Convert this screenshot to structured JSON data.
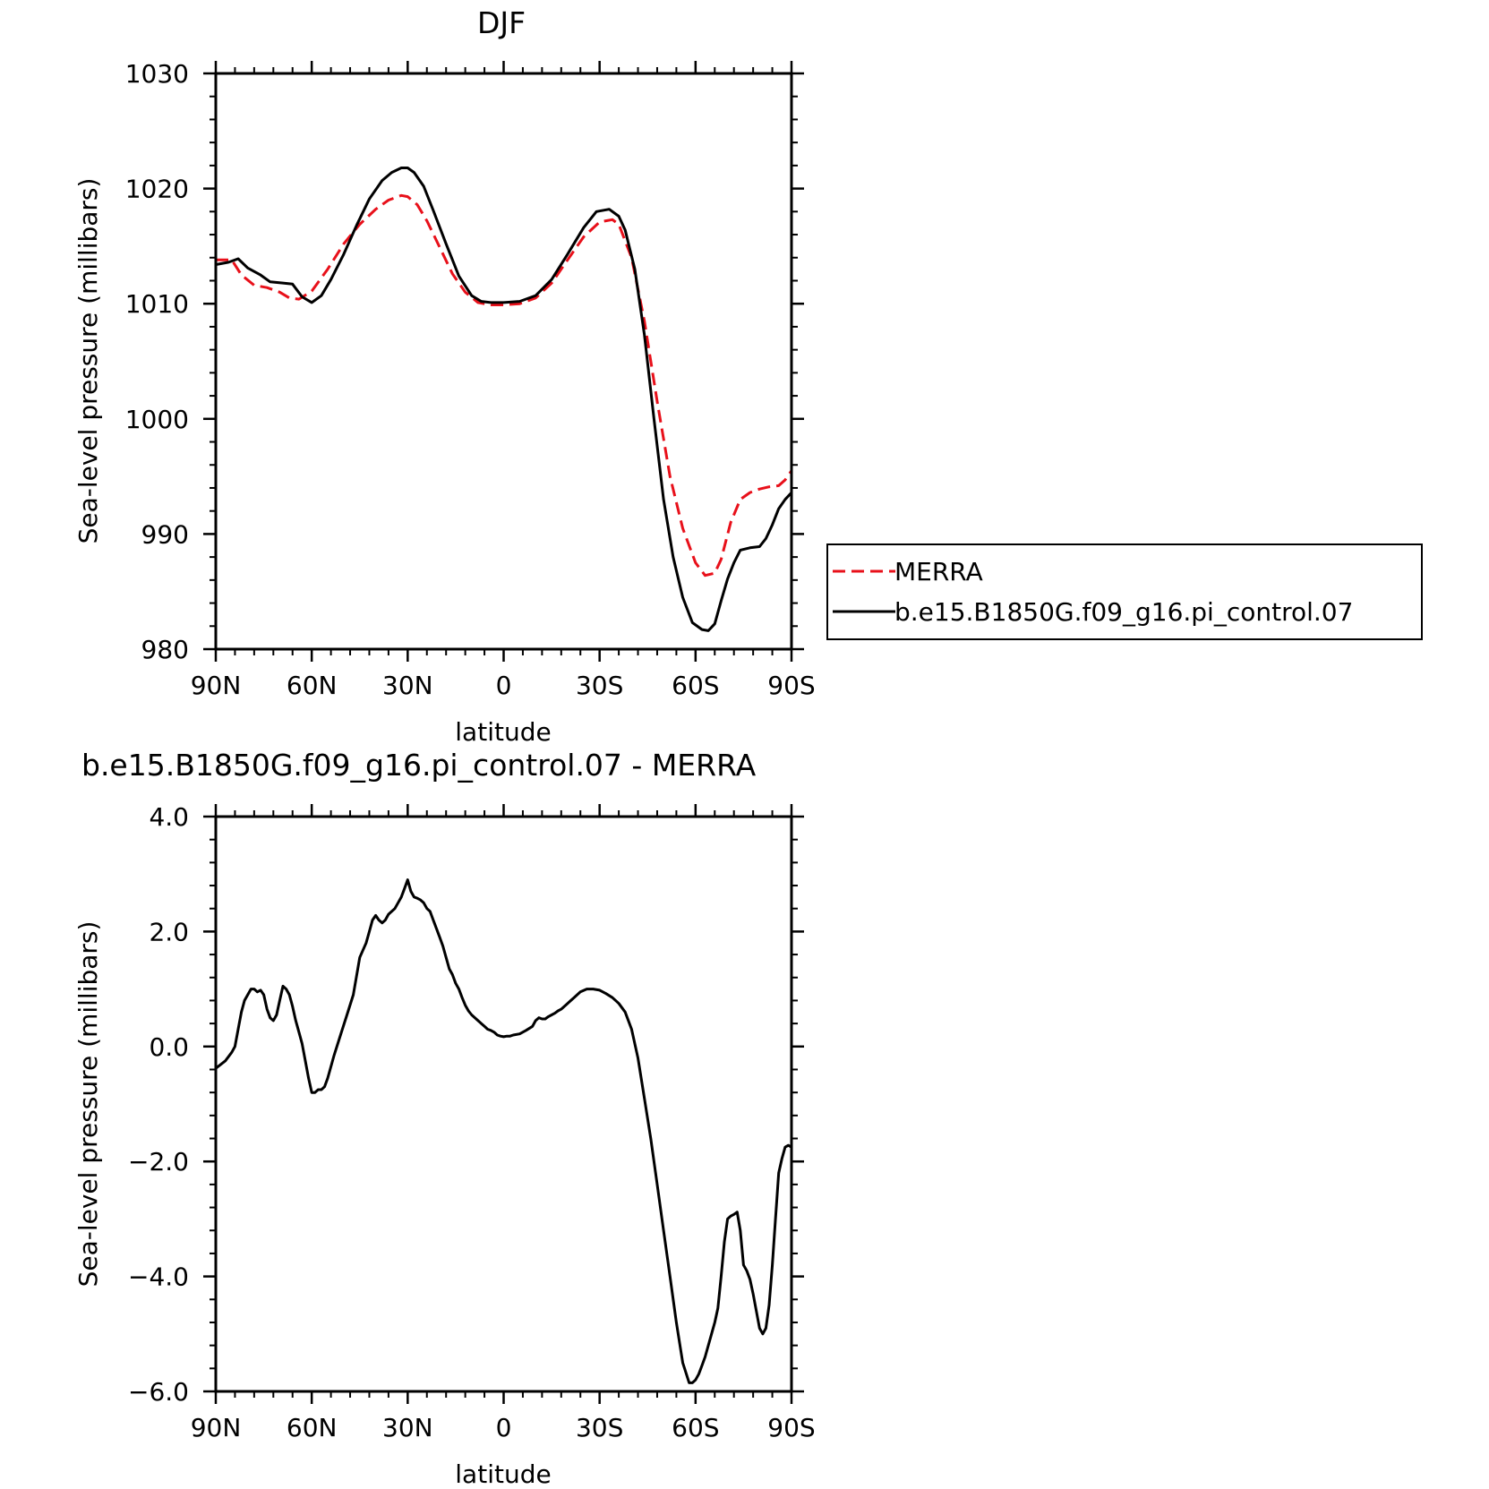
{
  "chart_data": [
    {
      "type": "line",
      "title": "DJF",
      "xlabel": "latitude",
      "ylabel": "Sea-level pressure (millibars)",
      "x_tick_labels": [
        "90N",
        "60N",
        "30N",
        "0",
        "30S",
        "60S",
        "90S"
      ],
      "x_ticks": [
        90,
        60,
        30,
        0,
        -30,
        -60,
        -90
      ],
      "xlim": [
        90,
        -90
      ],
      "y_tick_labels": [
        "980",
        "990",
        "1000",
        "1010",
        "1020",
        "1030"
      ],
      "y_ticks": [
        980,
        990,
        1000,
        1010,
        1020,
        1030
      ],
      "ylim": [
        980,
        1030
      ],
      "legend": "right",
      "series": [
        {
          "name": "MERRA",
          "color": "#e8101a",
          "dash": "dashed",
          "x": [
            90,
            85,
            82,
            78,
            74,
            70,
            67,
            64,
            60,
            55,
            50,
            45,
            40,
            36,
            32,
            30,
            27,
            24,
            20,
            16,
            12,
            8,
            4,
            0,
            -5,
            -10,
            -15,
            -20,
            -25,
            -30,
            -34,
            -36,
            -40,
            -44,
            -48,
            -52,
            -56,
            -60,
            -63,
            -66,
            -68,
            -71,
            -74,
            -77,
            -80,
            -83,
            -86,
            -88,
            -90
          ],
          "y": [
            1013.8,
            1013.8,
            1012.5,
            1011.6,
            1011.4,
            1011,
            1010.5,
            1010.4,
            1011.1,
            1013,
            1015.2,
            1016.9,
            1018.2,
            1019,
            1019.4,
            1019.3,
            1018.6,
            1017.2,
            1014.9,
            1012.6,
            1011,
            1010.1,
            1009.9,
            1009.9,
            1010,
            1010.5,
            1011.8,
            1013.8,
            1015.8,
            1017.1,
            1017.3,
            1016.9,
            1014,
            1008.5,
            1001.5,
            995,
            990.5,
            987.5,
            986.4,
            986.6,
            987.8,
            991,
            993,
            993.6,
            993.9,
            994.1,
            994.2,
            994.7,
            995.5
          ]
        },
        {
          "name": "b.e15.B1850G.f09_g16.pi_control.07",
          "color": "#000000",
          "dash": "solid",
          "x": [
            90,
            86,
            83,
            80,
            76,
            73,
            69,
            66,
            63,
            60,
            57,
            54,
            50,
            46,
            42,
            38,
            35,
            32,
            30,
            28,
            25,
            22,
            18,
            14,
            10,
            7,
            4,
            0,
            -5,
            -10,
            -15,
            -20,
            -25,
            -29,
            -33,
            -36,
            -38,
            -41,
            -44,
            -47,
            -50,
            -53,
            -56,
            -59,
            -62,
            -64,
            -66,
            -68,
            -70,
            -72,
            -74,
            -77,
            -80,
            -82,
            -84,
            -86,
            -88,
            -90
          ],
          "y": [
            1013.4,
            1013.6,
            1013.9,
            1013.1,
            1012.5,
            1011.9,
            1011.8,
            1011.7,
            1010.6,
            1010.1,
            1010.7,
            1012.1,
            1014.3,
            1016.8,
            1019.1,
            1020.7,
            1021.4,
            1021.8,
            1021.8,
            1021.4,
            1020.2,
            1018.1,
            1015.2,
            1012.4,
            1010.7,
            1010.2,
            1010.1,
            1010.1,
            1010.2,
            1010.7,
            1012.1,
            1014.3,
            1016.6,
            1018,
            1018.2,
            1017.6,
            1016.4,
            1013,
            1007.3,
            1000,
            993,
            988,
            984.5,
            982.3,
            981.7,
            981.6,
            982.2,
            984.2,
            986.1,
            987.5,
            988.6,
            988.8,
            988.9,
            989.6,
            990.8,
            992.2,
            993.0,
            993.6
          ]
        }
      ]
    },
    {
      "type": "line",
      "title": "b.e15.B1850G.f09_g16.pi_control.07 - MERRA",
      "xlabel": "latitude",
      "ylabel": "Sea-level pressure (millibars)",
      "x_tick_labels": [
        "90N",
        "60N",
        "30N",
        "0",
        "30S",
        "60S",
        "90S"
      ],
      "x_ticks": [
        90,
        60,
        30,
        0,
        -30,
        -60,
        -90
      ],
      "xlim": [
        90,
        -90
      ],
      "y_tick_labels": [
        "−6.0",
        "−4.0",
        "−2.0",
        "0.0",
        "2.0",
        "4.0"
      ],
      "y_ticks": [
        -6,
        -4,
        -2,
        0,
        2,
        4
      ],
      "ylim": [
        -6,
        4
      ],
      "series": [
        {
          "color": "#000000",
          "dash": "solid",
          "x": [
            90,
            87,
            85,
            84,
            83,
            82,
            81,
            80,
            79,
            78,
            77,
            76,
            75,
            74,
            73,
            72,
            71,
            70,
            69,
            68,
            67,
            66,
            65,
            64,
            63,
            62,
            61,
            60,
            59,
            58,
            57,
            56,
            55,
            53,
            51,
            49,
            47,
            45,
            43,
            42,
            41,
            40,
            39,
            38,
            37,
            36,
            35,
            34,
            33,
            32,
            31,
            30,
            29,
            28,
            27,
            26,
            25,
            24,
            23,
            22,
            21,
            20,
            19,
            18,
            17,
            16,
            15,
            14,
            13,
            12,
            11,
            10,
            9,
            8,
            7,
            6,
            5,
            4,
            3,
            2,
            1,
            0,
            -1,
            -2,
            -3,
            -5,
            -7,
            -9,
            -10,
            -11,
            -12,
            -13,
            -14,
            -15,
            -16,
            -17,
            -18,
            -20,
            -22,
            -24,
            -26,
            -28,
            -30,
            -32,
            -34,
            -36,
            -38,
            -40,
            -42,
            -44,
            -46,
            -48,
            -50,
            -52,
            -54,
            -56,
            -58,
            -59,
            -60,
            -61,
            -62,
            -63,
            -64,
            -65,
            -66,
            -67,
            -68,
            -69,
            -70,
            -71,
            -72,
            -73,
            -74,
            -75,
            -76,
            -77,
            -78,
            -79,
            -80,
            -81,
            -82,
            -83,
            -84,
            -85,
            -86,
            -87,
            -88,
            -89,
            -90
          ],
          "y": [
            -0.38,
            -0.25,
            -0.1,
            0.0,
            0.3,
            0.6,
            0.8,
            0.9,
            1.0,
            1.0,
            0.95,
            0.98,
            0.9,
            0.65,
            0.5,
            0.45,
            0.55,
            0.8,
            1.05,
            1.0,
            0.9,
            0.7,
            0.45,
            0.25,
            0.05,
            -0.25,
            -0.55,
            -0.8,
            -0.8,
            -0.75,
            -0.75,
            -0.7,
            -0.55,
            -0.15,
            0.2,
            0.55,
            0.9,
            1.55,
            1.8,
            2.0,
            2.2,
            2.28,
            2.2,
            2.15,
            2.2,
            2.3,
            2.35,
            2.4,
            2.5,
            2.6,
            2.75,
            2.9,
            2.7,
            2.6,
            2.58,
            2.55,
            2.5,
            2.4,
            2.35,
            2.2,
            2.05,
            1.9,
            1.75,
            1.55,
            1.35,
            1.25,
            1.1,
            1.0,
            0.85,
            0.72,
            0.62,
            0.55,
            0.5,
            0.45,
            0.4,
            0.35,
            0.3,
            0.28,
            0.25,
            0.2,
            0.18,
            0.17,
            0.18,
            0.18,
            0.2,
            0.22,
            0.28,
            0.35,
            0.45,
            0.5,
            0.48,
            0.48,
            0.52,
            0.55,
            0.58,
            0.62,
            0.65,
            0.75,
            0.85,
            0.95,
            1.0,
            1.0,
            0.98,
            0.92,
            0.85,
            0.75,
            0.6,
            0.3,
            -0.2,
            -0.9,
            -1.6,
            -2.4,
            -3.2,
            -4.0,
            -4.8,
            -5.5,
            -5.85,
            -5.85,
            -5.8,
            -5.7,
            -5.55,
            -5.4,
            -5.2,
            -5.0,
            -4.8,
            -4.55,
            -4.0,
            -3.4,
            -3.0,
            -2.95,
            -2.92,
            -2.88,
            -3.2,
            -3.8,
            -3.9,
            -4.05,
            -4.3,
            -4.6,
            -4.9,
            -5.0,
            -4.9,
            -4.5,
            -3.8,
            -3.0,
            -2.2,
            -1.95,
            -1.75,
            -1.72,
            -1.75
          ]
        }
      ]
    }
  ]
}
